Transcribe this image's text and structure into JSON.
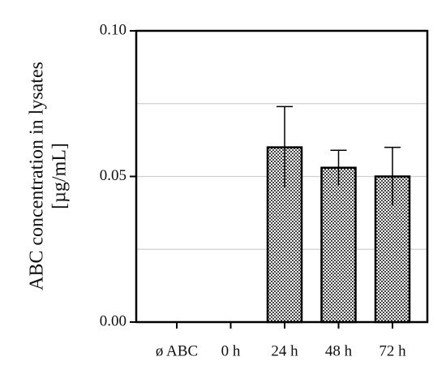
{
  "chart_data": {
    "type": "bar",
    "y_label": [
      "ABC concentration in lysates",
      "[µg/mL]"
    ],
    "categories": [
      "ø ABC",
      "0 h",
      "24 h",
      "48 h",
      "72 h"
    ],
    "values": [
      0,
      0,
      0.06,
      0.053,
      0.05
    ],
    "errors": [
      0,
      0,
      0.014,
      0.006,
      0.01
    ],
    "color": "#555555",
    "ylim": [
      0,
      0.1
    ],
    "yticks": [
      {
        "value": 0,
        "label": "0.00"
      },
      {
        "value": 0.05,
        "label": "0.05"
      },
      {
        "value": 0.1,
        "label": "0.10"
      }
    ],
    "grid_lines": [
      0.025,
      0.05,
      0.075
    ],
    "grid": true
  }
}
